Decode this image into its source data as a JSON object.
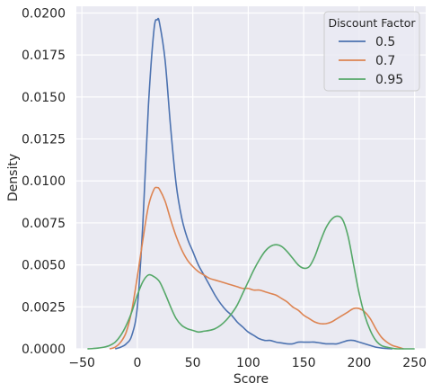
{
  "chart_data": {
    "type": "line",
    "title": "",
    "xlabel": "Score",
    "ylabel": "Density",
    "xlim": [
      -55,
      260
    ],
    "ylim": [
      0,
      0.0204
    ],
    "xticks": [
      -50,
      0,
      50,
      100,
      150,
      200,
      250
    ],
    "xtick_labels": [
      "−50",
      "0",
      "50",
      "100",
      "150",
      "200",
      "250"
    ],
    "yticks": [
      0,
      0.0025,
      0.005,
      0.0075,
      0.01,
      0.0125,
      0.015,
      0.0175,
      0.02
    ],
    "ytick_labels": [
      "0.0000",
      "0.0025",
      "0.0050",
      "0.0075",
      "0.0100",
      "0.0125",
      "0.0150",
      "0.0175",
      "0.0200"
    ],
    "grid": true,
    "background": "#eaeaf2",
    "legend": {
      "title": "Discount Factor",
      "placement": "top-right"
    },
    "series": [
      {
        "name": "0.5",
        "color": "#4c72b0",
        "x": [
          -20,
          -15,
          -10,
          -5,
          0,
          5,
          10,
          15,
          18,
          20,
          25,
          30,
          35,
          40,
          45,
          50,
          55,
          60,
          65,
          70,
          75,
          80,
          85,
          90,
          95,
          100,
          105,
          110,
          115,
          120,
          125,
          130,
          135,
          140,
          145,
          150,
          155,
          160,
          165,
          170,
          175,
          180,
          185,
          190,
          195,
          200,
          205,
          210,
          215,
          220,
          225,
          230
        ],
        "y": [
          0.0,
          0.0001,
          0.0003,
          0.0008,
          0.0025,
          0.0075,
          0.0145,
          0.019,
          0.0196,
          0.0194,
          0.0172,
          0.0132,
          0.0098,
          0.0078,
          0.0066,
          0.0058,
          0.005,
          0.0044,
          0.0038,
          0.0032,
          0.0027,
          0.0023,
          0.002,
          0.0016,
          0.0013,
          0.001,
          0.0008,
          0.0006,
          0.0005,
          0.0005,
          0.0004,
          0.00035,
          0.0003,
          0.0003,
          0.0004,
          0.0004,
          0.0004,
          0.0004,
          0.00035,
          0.0003,
          0.0003,
          0.0003,
          0.0004,
          0.0005,
          0.0005,
          0.0004,
          0.0003,
          0.0002,
          0.0001,
          5e-05,
          2e-05,
          0.0
        ]
      },
      {
        "name": "0.7",
        "color": "#dd8452",
        "x": [
          -25,
          -20,
          -15,
          -10,
          -5,
          0,
          5,
          10,
          15,
          18,
          20,
          25,
          30,
          35,
          40,
          45,
          50,
          55,
          60,
          65,
          70,
          75,
          80,
          85,
          90,
          95,
          100,
          105,
          110,
          115,
          120,
          125,
          130,
          135,
          140,
          145,
          150,
          155,
          160,
          165,
          170,
          175,
          180,
          185,
          190,
          195,
          200,
          205,
          210,
          215,
          220,
          225,
          230,
          235,
          240
        ],
        "y": [
          0.0,
          0.0001,
          0.0004,
          0.001,
          0.0023,
          0.0043,
          0.0065,
          0.0085,
          0.0095,
          0.0096,
          0.0095,
          0.0088,
          0.0077,
          0.0067,
          0.0059,
          0.0053,
          0.0049,
          0.0046,
          0.0044,
          0.0042,
          0.0041,
          0.004,
          0.0039,
          0.0038,
          0.0037,
          0.0036,
          0.0036,
          0.0035,
          0.0035,
          0.0034,
          0.0033,
          0.0032,
          0.003,
          0.0028,
          0.0025,
          0.0023,
          0.002,
          0.0018,
          0.0016,
          0.0015,
          0.0015,
          0.0016,
          0.0018,
          0.002,
          0.0022,
          0.0024,
          0.0024,
          0.0022,
          0.0018,
          0.0012,
          0.0007,
          0.0004,
          0.0002,
          0.0001,
          0.0
        ]
      },
      {
        "name": "0.95",
        "color": "#55a868",
        "x": [
          -45,
          -40,
          -35,
          -30,
          -25,
          -20,
          -15,
          -10,
          -5,
          0,
          5,
          10,
          15,
          20,
          25,
          30,
          35,
          40,
          45,
          50,
          55,
          60,
          65,
          70,
          75,
          80,
          85,
          90,
          95,
          100,
          105,
          110,
          115,
          120,
          125,
          130,
          135,
          140,
          145,
          150,
          155,
          160,
          165,
          170,
          175,
          180,
          185,
          190,
          195,
          200,
          205,
          210,
          215,
          220,
          225,
          230,
          235,
          240,
          245,
          250
        ],
        "y": [
          0.0,
          2e-05,
          5e-05,
          0.0001,
          0.0002,
          0.0004,
          0.0008,
          0.0014,
          0.0022,
          0.0032,
          0.004,
          0.0044,
          0.0043,
          0.004,
          0.0033,
          0.0025,
          0.0018,
          0.0014,
          0.0012,
          0.0011,
          0.001,
          0.00105,
          0.0011,
          0.0012,
          0.0014,
          0.0017,
          0.0021,
          0.0026,
          0.0033,
          0.004,
          0.0047,
          0.0053,
          0.0058,
          0.0061,
          0.0062,
          0.0061,
          0.0058,
          0.0054,
          0.005,
          0.0048,
          0.0049,
          0.0055,
          0.0064,
          0.0072,
          0.0077,
          0.0079,
          0.0077,
          0.0067,
          0.005,
          0.0033,
          0.002,
          0.0011,
          0.0005,
          0.0002,
          0.0001,
          3e-05,
          0.0,
          0.0,
          0.0,
          0.0
        ]
      }
    ]
  }
}
